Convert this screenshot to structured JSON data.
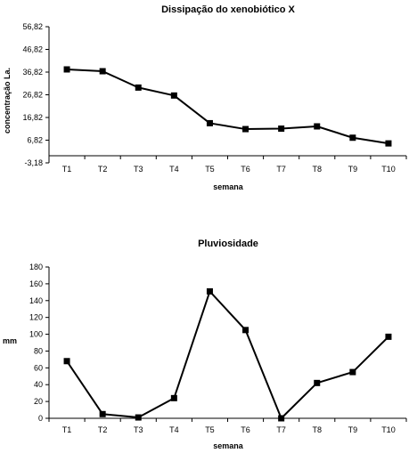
{
  "chart_data": [
    {
      "type": "line",
      "title": "Dissipação do xenobiótico X",
      "xlabel": "semana",
      "ylabel": "concentração La.",
      "categories": [
        "T1",
        "T2",
        "T3",
        "T4",
        "T5",
        "T6",
        "T7",
        "T8",
        "T9",
        "T10"
      ],
      "values": [
        38.0,
        37.2,
        30.0,
        26.5,
        14.3,
        11.7,
        11.9,
        12.9,
        7.9,
        5.4
      ],
      "yticks": [
        "56,82",
        "46,82",
        "36,82",
        "26,82",
        "16,82",
        "6,82",
        "-3,18"
      ],
      "ytick_values": [
        56.82,
        46.82,
        36.82,
        26.82,
        16.82,
        6.82,
        -3.18
      ],
      "ylim": [
        -3.18,
        56.82
      ],
      "marker": "square",
      "line_color": "#000000"
    },
    {
      "type": "line",
      "title": "Pluviosidade",
      "xlabel": "semana",
      "ylabel": "mm",
      "categories": [
        "T1",
        "T2",
        "T3",
        "T4",
        "T5",
        "T6",
        "T7",
        "T8",
        "T9",
        "T10"
      ],
      "values": [
        68,
        5,
        1,
        24,
        151,
        105,
        0,
        42,
        55,
        97
      ],
      "yticks": [
        "180",
        "160",
        "140",
        "120",
        "100",
        "80",
        "60",
        "40",
        "20",
        "0"
      ],
      "ytick_values": [
        180,
        160,
        140,
        120,
        100,
        80,
        60,
        40,
        20,
        0
      ],
      "ylim": [
        0,
        180
      ],
      "marker": "square",
      "line_color": "#000000"
    }
  ]
}
